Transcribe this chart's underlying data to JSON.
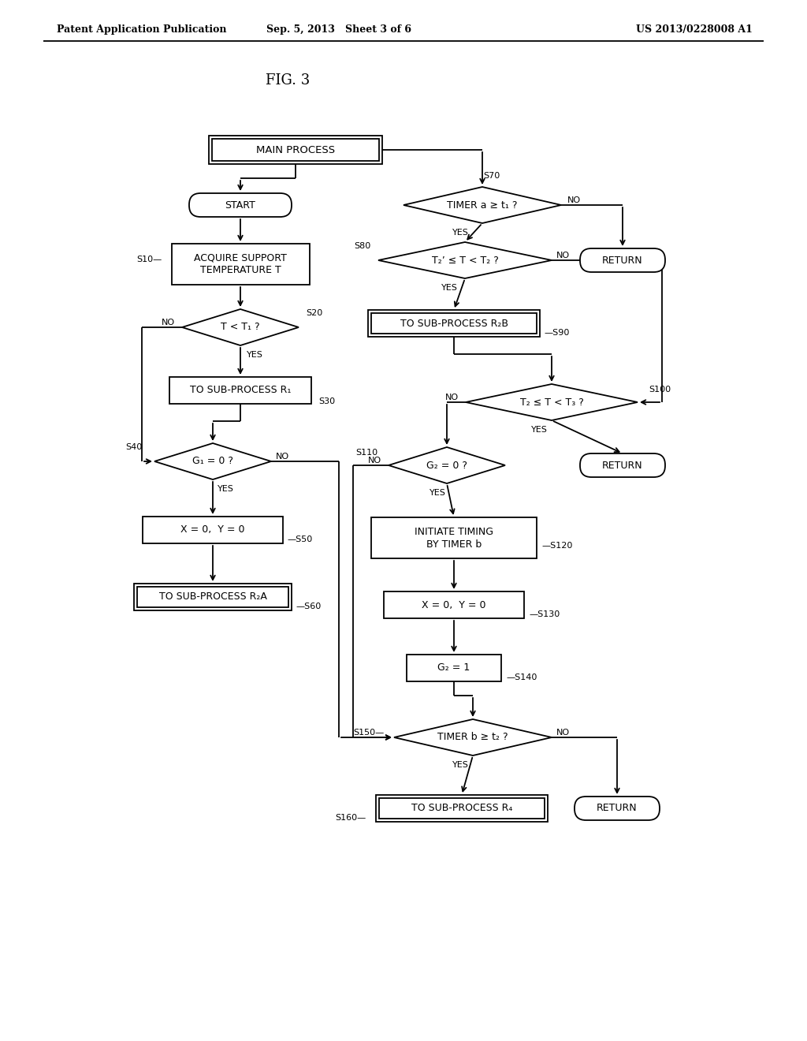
{
  "header_left": "Patent Application Publication",
  "header_mid": "Sep. 5, 2013   Sheet 3 of 6",
  "header_right": "US 2013/0228008 A1",
  "fig_label": "FIG. 3",
  "bg_color": "#ffffff",
  "lc": "#000000",
  "tc": "#000000"
}
